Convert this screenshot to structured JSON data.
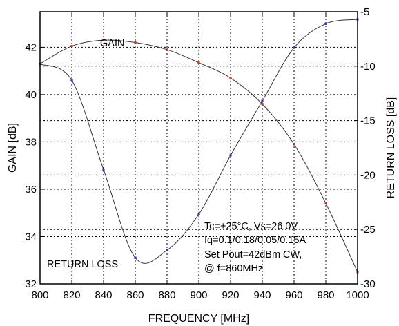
{
  "chart_data": {
    "type": "line",
    "xlabel": "FREQUENCY [MHz]",
    "ylabel_left": "GAIN [dB]",
    "ylabel_right": "RETURN LOSS [dB]",
    "xlim": [
      800,
      1000
    ],
    "ylim_left": [
      32,
      43.5
    ],
    "ylim_right": [
      -30,
      -5
    ],
    "x_ticks": [
      800,
      820,
      840,
      860,
      880,
      900,
      920,
      940,
      960,
      980,
      1000
    ],
    "y_left_ticks": [
      32,
      34,
      36,
      38,
      40,
      42
    ],
    "y_right_ticks": [
      -30,
      -25,
      -20,
      -15,
      -10,
      -5
    ],
    "grid": true,
    "series": [
      {
        "name": "GAIN",
        "axis": "left",
        "marker_color": "#c0392b",
        "x": [
          800,
          820,
          840,
          860,
          880,
          900,
          920,
          940,
          960,
          980,
          1000
        ],
        "y": [
          41.3,
          42.05,
          42.3,
          42.2,
          41.9,
          41.35,
          40.7,
          39.6,
          37.9,
          35.4,
          32.5
        ]
      },
      {
        "name": "RETURN LOSS",
        "axis": "right",
        "marker_color": "#2533c8",
        "x": [
          800,
          820,
          840,
          860,
          880,
          900,
          920,
          940,
          960,
          980,
          1000
        ],
        "y": [
          -9.8,
          -11.3,
          -19.5,
          -27.6,
          -26.9,
          -23.6,
          -18.2,
          -13.2,
          -8.3,
          -6.1,
          -5.7
        ]
      }
    ],
    "annotations": [
      "Tc=+25°C, Vs=26.0V",
      "Iq=0.1/0.18/0.05/0.15A",
      "Set Pout=42dBm CW,",
      "@ f=860MHz"
    ]
  }
}
